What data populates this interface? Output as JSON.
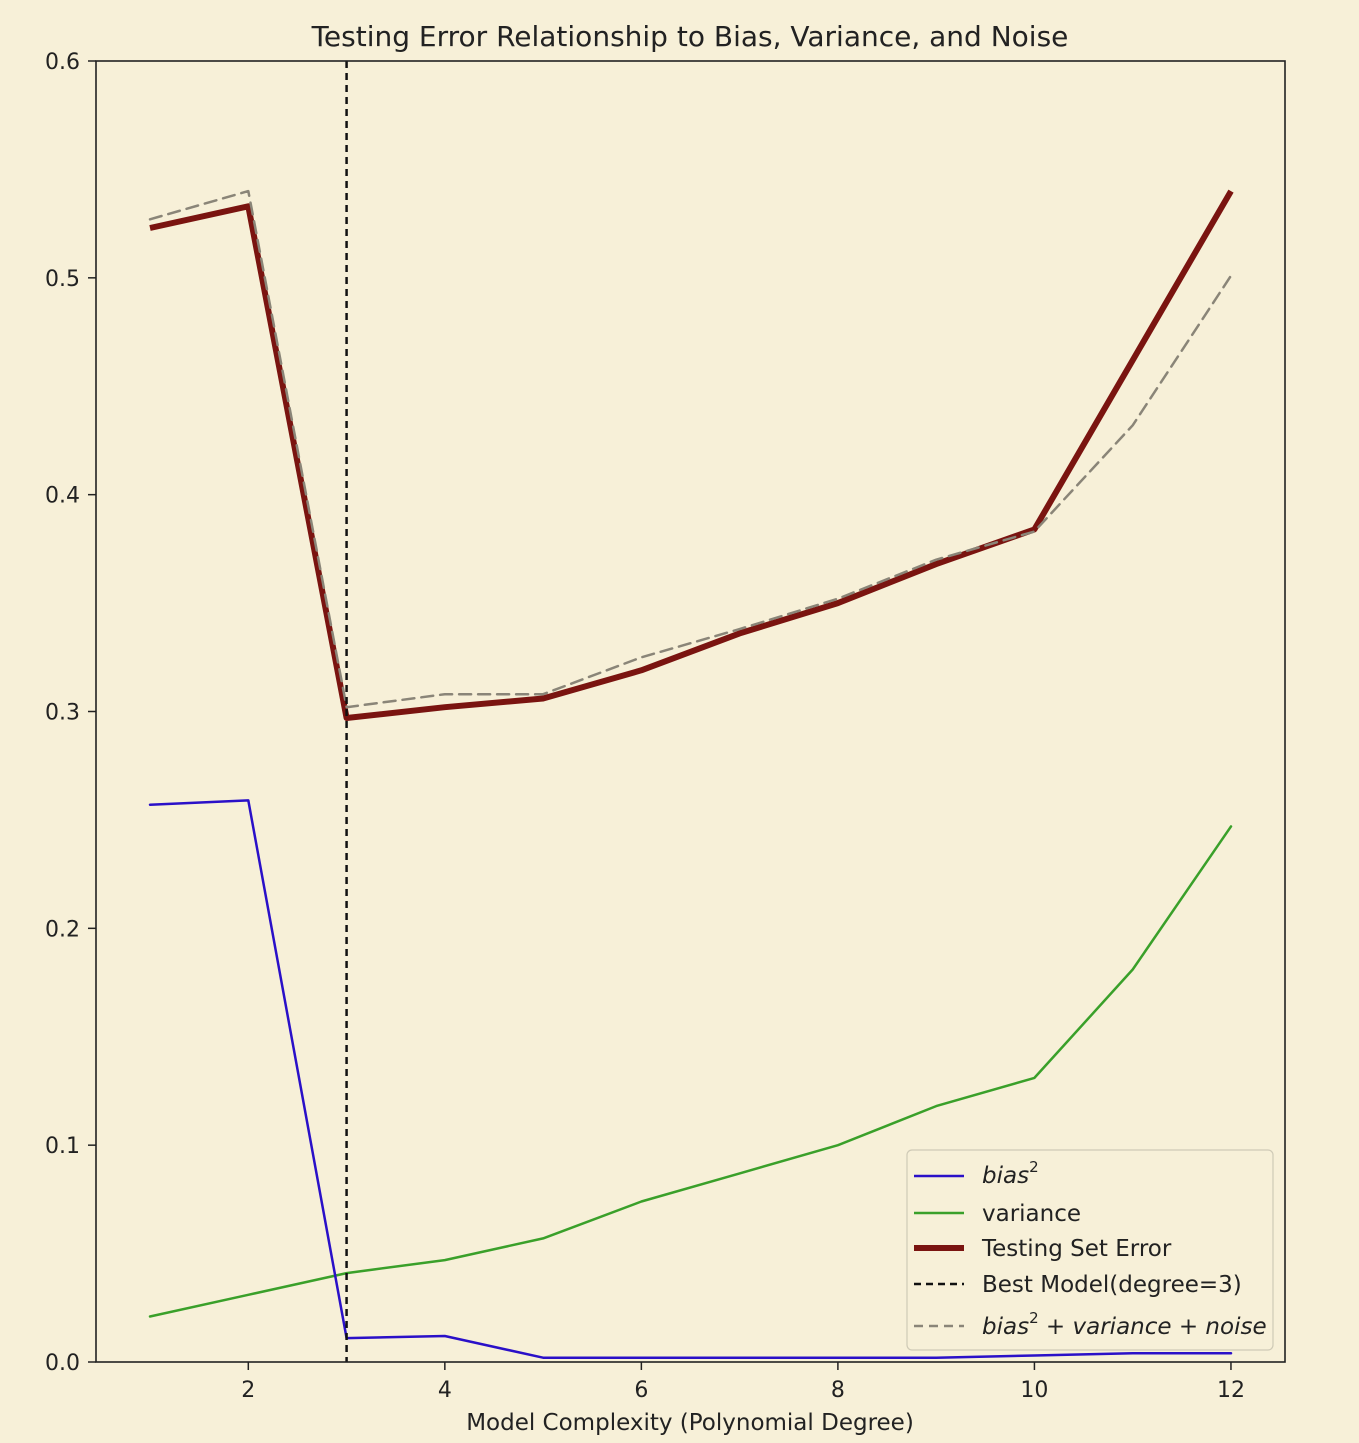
{
  "colors": {
    "background": "#f7f0d8",
    "bias": "#2a10c8",
    "variance": "#3aa02a",
    "testing_error": "#7a1410",
    "best_model": "#111111",
    "sum": "#8a8578"
  },
  "chart_data": {
    "type": "line",
    "title": "Testing Error Relationship to Bias, Variance, and Noise",
    "xlabel": "Model Complexity (Polynomial Degree)",
    "ylabel": "",
    "xlim": [
      0.45,
      12.55
    ],
    "ylim": [
      0.0,
      0.6
    ],
    "xticks": [
      2,
      4,
      6,
      8,
      10,
      12
    ],
    "xtick_labels": [
      "2",
      "4",
      "6",
      "8",
      "10",
      "12"
    ],
    "yticks": [
      0.0,
      0.1,
      0.2,
      0.3,
      0.4,
      0.5,
      0.6
    ],
    "ytick_labels": [
      "0.0",
      "0.1",
      "0.2",
      "0.3",
      "0.4",
      "0.5",
      "0.6"
    ],
    "grid": false,
    "legend_position": "bottom-right",
    "x": [
      1,
      2,
      3,
      4,
      5,
      6,
      7,
      8,
      9,
      10,
      11,
      12
    ],
    "series": [
      {
        "key": "bias",
        "name_main": "bias",
        "name_sup": "2",
        "style": "solid",
        "width": 2.5,
        "values": [
          0.257,
          0.259,
          0.011,
          0.012,
          0.002,
          0.002,
          0.002,
          0.002,
          0.002,
          0.003,
          0.004,
          0.004
        ]
      },
      {
        "key": "variance",
        "name": "variance",
        "style": "solid",
        "width": 2.5,
        "values": [
          0.021,
          0.031,
          0.041,
          0.047,
          0.057,
          0.074,
          0.087,
          0.1,
          0.118,
          0.131,
          0.181,
          0.247
        ]
      },
      {
        "key": "testing_error",
        "name": "Testing Set Error",
        "style": "solid",
        "width": 6,
        "values": [
          0.523,
          0.533,
          0.297,
          0.302,
          0.306,
          0.319,
          0.336,
          0.35,
          0.368,
          0.384,
          0.462,
          0.54
        ]
      },
      {
        "key": "sum",
        "name_main": "bias",
        "name_sup": "2",
        "name_rest": " + variance + noise",
        "style": "dashed",
        "width": 2.5,
        "values": [
          0.527,
          0.54,
          0.302,
          0.308,
          0.308,
          0.325,
          0.338,
          0.352,
          0.37,
          0.383,
          0.432,
          0.501
        ]
      }
    ],
    "vline": {
      "key": "best_model",
      "x": 3,
      "name": "Best Model(degree=3)",
      "style": "dashed"
    }
  }
}
